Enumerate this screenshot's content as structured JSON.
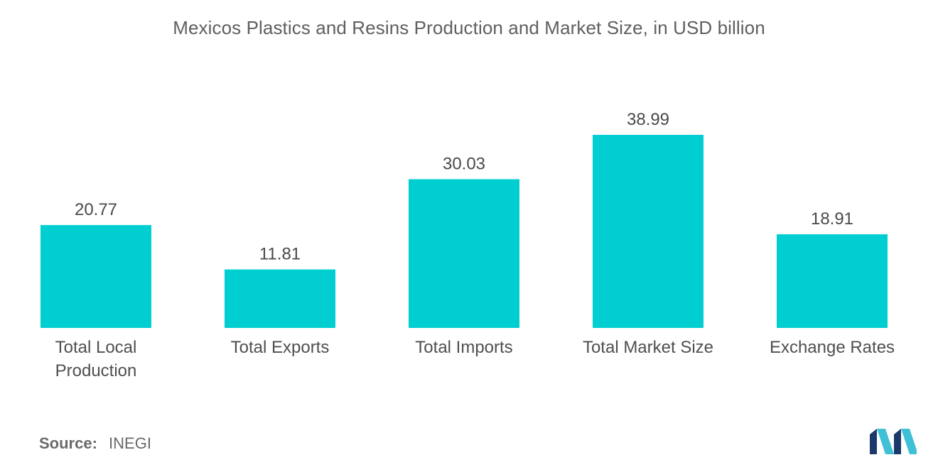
{
  "chart_data": {
    "type": "bar",
    "title": "Mexicos Plastics and Resins Production and Market Size, in USD billion",
    "categories": [
      [
        "Total Local",
        "Production"
      ],
      [
        "Total Exports"
      ],
      [
        "Total Imports"
      ],
      [
        "Total Market Size"
      ],
      [
        "Exchange Rates"
      ]
    ],
    "values": [
      20.77,
      11.81,
      30.03,
      38.99,
      18.91
    ],
    "value_labels": [
      "20.77",
      "11.81",
      "30.03",
      "38.99",
      "18.91"
    ],
    "xlabel": "",
    "ylabel": "",
    "ylim": [
      0,
      38.99
    ],
    "grid": false,
    "legend": "none",
    "bar_color": "#00ced1"
  },
  "source": {
    "label": "Source:",
    "value": "INEGI"
  },
  "logo": {
    "icon": "mordor-intelligence-logo-icon",
    "colors": [
      "#1b3a6b",
      "#3fc0d6"
    ]
  }
}
